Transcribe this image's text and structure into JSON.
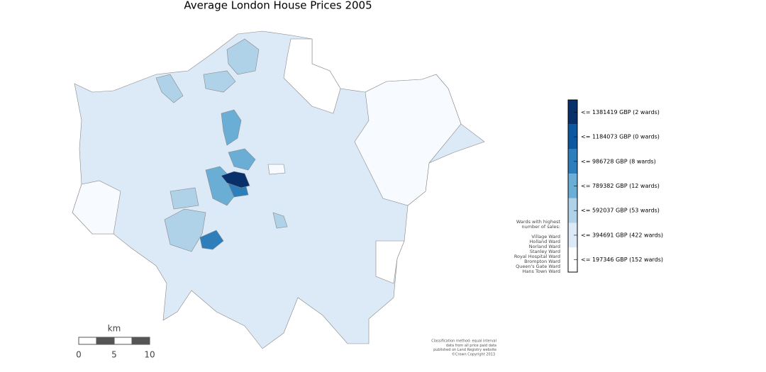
{
  "header": {
    "title": "Average London House Prices 2005"
  },
  "legend": {
    "entries": [
      {
        "label": "<= 1381419 GBP (2 wards)",
        "color": "#08306b"
      },
      {
        "label": "<= 1184073 GBP (0 wards)",
        "color": "#0d57a1"
      },
      {
        "label": "<= 986728 GBP (8 wards)",
        "color": "#2f7ebc"
      },
      {
        "label": "<= 789382 GBP (12 wards)",
        "color": "#6aaed6"
      },
      {
        "label": "<= 592037 GBP (53 wards)",
        "color": "#b0d2e8"
      },
      {
        "label": "<= 394691 GBP (422 wards)",
        "color": "#dce9f6"
      },
      {
        "label": "<= 197346 GBP (152 wards)",
        "color": "#ffffff"
      }
    ]
  },
  "notes": {
    "heading": [
      "Wards with highest",
      "number of sales:"
    ],
    "wards": [
      "Village Ward",
      "Holland Ward",
      "Norland Ward",
      "Stanley Ward",
      "Royal Hospital Ward",
      "Brompton Ward",
      "Queen's Gate Ward",
      "Hans Town Ward"
    ]
  },
  "scale_bar": {
    "unit": "km",
    "labels": [
      "0",
      "5",
      "10"
    ]
  },
  "footnote": [
    "Classification method: equal interval",
    "data from all price paid data",
    "published on Land Registry website",
    "©Crown Copyright 2013"
  ]
}
